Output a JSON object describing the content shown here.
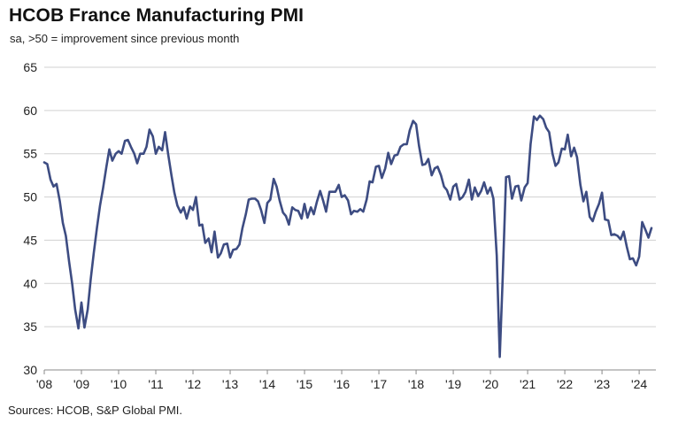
{
  "title": "HCOB France Manufacturing PMI",
  "subtitle": "sa, >50 = improvement since previous month",
  "source": "Sources: HCOB, S&P Global PMI.",
  "colors": {
    "line": "#3d4c82",
    "grid": "#d0d0d0",
    "axis": "#888888"
  },
  "chart_data": {
    "type": "line",
    "title": "HCOB France Manufacturing PMI",
    "subtitle": "sa, >50 = improvement since previous month",
    "xlabel": "",
    "ylabel": "",
    "ylim": [
      30,
      65
    ],
    "xlim": [
      2008.0,
      2024.45
    ],
    "grid": true,
    "yticks": [
      30,
      35,
      40,
      45,
      50,
      55,
      60,
      65
    ],
    "xticks": [
      "'08",
      "'09",
      "'10",
      "'11",
      "'12",
      "'13",
      "'14",
      "'15",
      "'16",
      "'17",
      "'18",
      "'19",
      "'20",
      "'21",
      "'22",
      "'23",
      "'24"
    ],
    "series": [
      {
        "name": "",
        "points": [
          [
            2008.0,
            54.0
          ],
          [
            2008.08,
            53.8
          ],
          [
            2008.17,
            52.0
          ],
          [
            2008.25,
            51.2
          ],
          [
            2008.33,
            51.5
          ],
          [
            2008.42,
            49.5
          ],
          [
            2008.5,
            47.0
          ],
          [
            2008.58,
            45.5
          ],
          [
            2008.67,
            42.5
          ],
          [
            2008.75,
            40.0
          ],
          [
            2008.83,
            37.0
          ],
          [
            2008.92,
            34.8
          ],
          [
            2009.0,
            37.8
          ],
          [
            2009.08,
            34.9
          ],
          [
            2009.17,
            37.0
          ],
          [
            2009.25,
            40.5
          ],
          [
            2009.33,
            43.5
          ],
          [
            2009.42,
            46.5
          ],
          [
            2009.5,
            49.0
          ],
          [
            2009.58,
            51.0
          ],
          [
            2009.67,
            53.5
          ],
          [
            2009.75,
            55.5
          ],
          [
            2009.83,
            54.2
          ],
          [
            2009.92,
            55.0
          ],
          [
            2010.0,
            55.3
          ],
          [
            2010.08,
            55.0
          ],
          [
            2010.17,
            56.5
          ],
          [
            2010.25,
            56.6
          ],
          [
            2010.33,
            55.8
          ],
          [
            2010.42,
            55.0
          ],
          [
            2010.5,
            53.9
          ],
          [
            2010.58,
            55.0
          ],
          [
            2010.67,
            55.0
          ],
          [
            2010.75,
            55.8
          ],
          [
            2010.83,
            57.8
          ],
          [
            2010.92,
            57.0
          ],
          [
            2011.0,
            55.0
          ],
          [
            2011.08,
            55.8
          ],
          [
            2011.17,
            55.4
          ],
          [
            2011.25,
            57.5
          ],
          [
            2011.33,
            55.0
          ],
          [
            2011.42,
            52.5
          ],
          [
            2011.5,
            50.5
          ],
          [
            2011.58,
            49.0
          ],
          [
            2011.67,
            48.2
          ],
          [
            2011.75,
            48.8
          ],
          [
            2011.83,
            47.5
          ],
          [
            2011.92,
            48.9
          ],
          [
            2012.0,
            48.5
          ],
          [
            2012.08,
            50.0
          ],
          [
            2012.17,
            46.7
          ],
          [
            2012.25,
            46.8
          ],
          [
            2012.33,
            44.7
          ],
          [
            2012.42,
            45.2
          ],
          [
            2012.5,
            43.6
          ],
          [
            2012.58,
            46.0
          ],
          [
            2012.67,
            43.0
          ],
          [
            2012.75,
            43.5
          ],
          [
            2012.83,
            44.5
          ],
          [
            2012.92,
            44.6
          ],
          [
            2013.0,
            43.0
          ],
          [
            2013.08,
            43.9
          ],
          [
            2013.17,
            44.0
          ],
          [
            2013.25,
            44.5
          ],
          [
            2013.33,
            46.4
          ],
          [
            2013.42,
            48.0
          ],
          [
            2013.5,
            49.7
          ],
          [
            2013.58,
            49.8
          ],
          [
            2013.67,
            49.8
          ],
          [
            2013.75,
            49.5
          ],
          [
            2013.83,
            48.5
          ],
          [
            2013.92,
            47.0
          ],
          [
            2014.0,
            49.3
          ],
          [
            2014.08,
            49.7
          ],
          [
            2014.17,
            52.1
          ],
          [
            2014.25,
            51.2
          ],
          [
            2014.33,
            49.6
          ],
          [
            2014.42,
            48.2
          ],
          [
            2014.5,
            47.8
          ],
          [
            2014.58,
            46.8
          ],
          [
            2014.67,
            48.8
          ],
          [
            2014.75,
            48.5
          ],
          [
            2014.83,
            48.4
          ],
          [
            2014.92,
            47.5
          ],
          [
            2015.0,
            49.2
          ],
          [
            2015.08,
            47.6
          ],
          [
            2015.17,
            48.8
          ],
          [
            2015.25,
            48.0
          ],
          [
            2015.33,
            49.4
          ],
          [
            2015.42,
            50.7
          ],
          [
            2015.5,
            49.6
          ],
          [
            2015.58,
            48.3
          ],
          [
            2015.67,
            50.6
          ],
          [
            2015.75,
            50.6
          ],
          [
            2015.83,
            50.6
          ],
          [
            2015.92,
            51.4
          ],
          [
            2016.0,
            50.0
          ],
          [
            2016.08,
            50.2
          ],
          [
            2016.17,
            49.6
          ],
          [
            2016.25,
            48.0
          ],
          [
            2016.33,
            48.4
          ],
          [
            2016.42,
            48.3
          ],
          [
            2016.5,
            48.6
          ],
          [
            2016.58,
            48.3
          ],
          [
            2016.67,
            49.7
          ],
          [
            2016.75,
            51.8
          ],
          [
            2016.83,
            51.7
          ],
          [
            2016.92,
            53.5
          ],
          [
            2017.0,
            53.6
          ],
          [
            2017.08,
            52.2
          ],
          [
            2017.17,
            53.3
          ],
          [
            2017.25,
            55.1
          ],
          [
            2017.33,
            53.8
          ],
          [
            2017.42,
            54.8
          ],
          [
            2017.5,
            54.9
          ],
          [
            2017.58,
            55.8
          ],
          [
            2017.67,
            56.1
          ],
          [
            2017.75,
            56.1
          ],
          [
            2017.83,
            57.7
          ],
          [
            2017.92,
            58.8
          ],
          [
            2018.0,
            58.4
          ],
          [
            2018.08,
            55.9
          ],
          [
            2018.17,
            53.7
          ],
          [
            2018.25,
            53.8
          ],
          [
            2018.33,
            54.4
          ],
          [
            2018.42,
            52.5
          ],
          [
            2018.5,
            53.3
          ],
          [
            2018.58,
            53.5
          ],
          [
            2018.67,
            52.5
          ],
          [
            2018.75,
            51.2
          ],
          [
            2018.83,
            50.8
          ],
          [
            2018.92,
            49.7
          ],
          [
            2019.0,
            51.2
          ],
          [
            2019.08,
            51.5
          ],
          [
            2019.17,
            49.7
          ],
          [
            2019.25,
            50.0
          ],
          [
            2019.33,
            50.6
          ],
          [
            2019.42,
            52.0
          ],
          [
            2019.5,
            49.7
          ],
          [
            2019.58,
            51.1
          ],
          [
            2019.67,
            50.1
          ],
          [
            2019.75,
            50.7
          ],
          [
            2019.83,
            51.7
          ],
          [
            2019.92,
            50.4
          ],
          [
            2020.0,
            51.1
          ],
          [
            2020.08,
            49.8
          ],
          [
            2020.17,
            43.2
          ],
          [
            2020.25,
            31.5
          ],
          [
            2020.33,
            40.6
          ],
          [
            2020.42,
            52.3
          ],
          [
            2020.5,
            52.4
          ],
          [
            2020.58,
            49.8
          ],
          [
            2020.67,
            51.2
          ],
          [
            2020.75,
            51.3
          ],
          [
            2020.83,
            49.6
          ],
          [
            2020.92,
            51.1
          ],
          [
            2021.0,
            51.6
          ],
          [
            2021.08,
            56.1
          ],
          [
            2021.17,
            59.3
          ],
          [
            2021.25,
            58.9
          ],
          [
            2021.33,
            59.4
          ],
          [
            2021.42,
            59.0
          ],
          [
            2021.5,
            58.0
          ],
          [
            2021.58,
            57.5
          ],
          [
            2021.67,
            55.0
          ],
          [
            2021.75,
            53.6
          ],
          [
            2021.83,
            54.0
          ],
          [
            2021.92,
            55.6
          ],
          [
            2022.0,
            55.5
          ],
          [
            2022.08,
            57.2
          ],
          [
            2022.17,
            54.7
          ],
          [
            2022.25,
            55.7
          ],
          [
            2022.33,
            54.6
          ],
          [
            2022.42,
            51.4
          ],
          [
            2022.5,
            49.5
          ],
          [
            2022.58,
            50.6
          ],
          [
            2022.67,
            47.7
          ],
          [
            2022.75,
            47.2
          ],
          [
            2022.83,
            48.3
          ],
          [
            2022.92,
            49.2
          ],
          [
            2023.0,
            50.5
          ],
          [
            2023.08,
            47.4
          ],
          [
            2023.17,
            47.3
          ],
          [
            2023.25,
            45.6
          ],
          [
            2023.33,
            45.7
          ],
          [
            2023.42,
            45.5
          ],
          [
            2023.5,
            45.1
          ],
          [
            2023.58,
            46.0
          ],
          [
            2023.67,
            44.2
          ],
          [
            2023.75,
            42.8
          ],
          [
            2023.83,
            42.9
          ],
          [
            2023.92,
            42.1
          ],
          [
            2024.0,
            43.1
          ],
          [
            2024.08,
            47.1
          ],
          [
            2024.17,
            46.2
          ],
          [
            2024.25,
            45.3
          ],
          [
            2024.33,
            46.4
          ]
        ]
      }
    ]
  }
}
